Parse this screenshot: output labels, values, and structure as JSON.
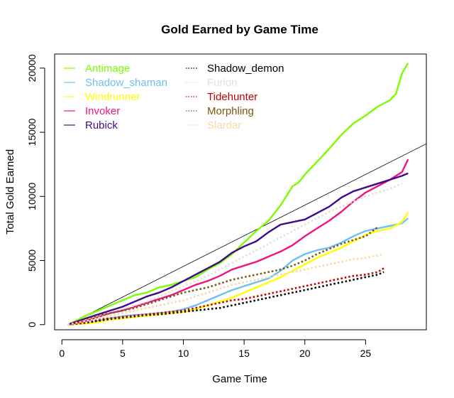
{
  "chart_data": {
    "type": "line",
    "title": "Gold Earned by Game Time",
    "xlabel": "Game Time",
    "ylabel": "Total Gold Earned",
    "xlim": [
      -0.6,
      30.0
    ],
    "ylim": [
      -400,
      21100
    ],
    "xticks": [
      0,
      5,
      10,
      15,
      20,
      25
    ],
    "xtick_labels": [
      "0",
      "5",
      "10",
      "15",
      "20",
      "25"
    ],
    "yticks": [
      0,
      5000,
      10000,
      15000,
      20000
    ],
    "ytick_labels": [
      "0",
      "5000",
      "10000",
      "15000",
      "20000"
    ],
    "legend_position": "top-left",
    "reference_line": {
      "name": "reference",
      "color": "#000000",
      "from": [
        0.5,
        0
      ],
      "to": [
        30.0,
        14100
      ]
    },
    "series": [
      {
        "name": "Antimage",
        "color": "#7CFC00",
        "dash": "solid",
        "x": [
          0.5,
          2,
          3,
          4,
          5,
          6,
          7,
          8,
          9,
          10,
          11,
          12,
          13,
          14,
          15,
          16,
          17,
          18,
          19,
          19.5,
          20,
          21,
          22,
          23,
          24,
          25,
          26,
          27,
          27.5,
          28,
          28.5
        ],
        "y": [
          0,
          700,
          1100,
          1500,
          1900,
          2300,
          2500,
          2900,
          3100,
          3400,
          3700,
          4300,
          4800,
          5500,
          6400,
          7300,
          8100,
          9300,
          10800,
          11100,
          11700,
          12700,
          13700,
          14800,
          15700,
          16300,
          17000,
          17500,
          18000,
          19600,
          20400
        ]
      },
      {
        "name": "Shadow_shaman",
        "color": "#6CC0F0",
        "dash": "solid",
        "x": [
          0.5,
          2,
          3,
          4,
          5,
          6,
          7,
          8,
          9,
          10,
          11,
          12,
          13,
          14,
          15,
          16,
          17,
          18,
          19,
          20,
          21,
          22,
          23,
          24,
          25,
          26,
          27,
          28,
          28.5
        ],
        "y": [
          0,
          100,
          300,
          500,
          650,
          750,
          800,
          900,
          1000,
          1200,
          1500,
          1900,
          2300,
          2700,
          3000,
          3300,
          3600,
          4200,
          5000,
          5500,
          5800,
          6000,
          6400,
          6900,
          7300,
          7500,
          7700,
          7900,
          8300
        ]
      },
      {
        "name": "Windrunner",
        "color": "#FFFF00",
        "dash": "solid",
        "x": [
          0.5,
          2,
          3,
          4,
          5,
          6,
          7,
          8,
          9,
          10,
          11,
          12,
          13,
          14,
          15,
          16,
          17,
          18,
          19,
          20,
          21,
          22,
          23,
          24,
          25,
          26,
          27,
          28,
          28.5
        ],
        "y": [
          0,
          100,
          200,
          400,
          500,
          600,
          700,
          800,
          900,
          1000,
          1200,
          1500,
          1800,
          2100,
          2500,
          2900,
          3300,
          3700,
          4200,
          4700,
          5200,
          5600,
          6000,
          6500,
          7000,
          7300,
          7500,
          8000,
          8800
        ]
      },
      {
        "name": "Invoker",
        "color": "#F0147F",
        "dash": "solid",
        "x": [
          0.5,
          2,
          3,
          4,
          5,
          6,
          7,
          8,
          9,
          10,
          11,
          12,
          13,
          14,
          15,
          16,
          17,
          18,
          19,
          20,
          21,
          22,
          23,
          24,
          25,
          26,
          27,
          28,
          28.5
        ],
        "y": [
          0,
          300,
          600,
          900,
          1100,
          1400,
          1700,
          2000,
          2300,
          2700,
          3100,
          3400,
          3800,
          4300,
          4600,
          4900,
          5300,
          5700,
          6200,
          6900,
          7500,
          8100,
          8800,
          9600,
          10300,
          10800,
          11300,
          11900,
          12900
        ]
      },
      {
        "name": "Rubick",
        "color": "#3D0A8C",
        "dash": "solid",
        "x": [
          0.5,
          2,
          3,
          4,
          5,
          6,
          7,
          8,
          9,
          10,
          11,
          12,
          13,
          14,
          15,
          16,
          17,
          18,
          19,
          20,
          21,
          22,
          23,
          24,
          25,
          26,
          27,
          28,
          28.5
        ],
        "y": [
          0,
          500,
          800,
          1100,
          1400,
          1800,
          2200,
          2500,
          2900,
          3400,
          3900,
          4400,
          4900,
          5600,
          6100,
          6500,
          7200,
          7800,
          8000,
          8200,
          8700,
          9200,
          9900,
          10400,
          10700,
          11000,
          11300,
          11600,
          11800
        ]
      },
      {
        "name": "Shadow_demon",
        "color": "#000000",
        "dash": "dot",
        "x": [
          0.5,
          2,
          3,
          4,
          5,
          6,
          7,
          8,
          9,
          10,
          11,
          12,
          13,
          14,
          15,
          16,
          17,
          18,
          19,
          20,
          21,
          22,
          23,
          24,
          25,
          26,
          26.5
        ],
        "y": [
          0,
          150,
          300,
          450,
          550,
          650,
          750,
          800,
          900,
          1000,
          1100,
          1200,
          1300,
          1500,
          1700,
          1900,
          2100,
          2300,
          2500,
          2700,
          2900,
          3100,
          3300,
          3500,
          3700,
          3900,
          4100
        ]
      },
      {
        "name": "Furion",
        "color": "#E0E0E0",
        "dash": "dot",
        "x": [
          0.5,
          2,
          3,
          4,
          5,
          6,
          7,
          8,
          9,
          10,
          11,
          12,
          13,
          14,
          15,
          16,
          17,
          18,
          19,
          20,
          21,
          22,
          23,
          24,
          25,
          26,
          27,
          28
        ],
        "y": [
          0,
          300,
          600,
          900,
          1200,
          1500,
          1800,
          2200,
          2600,
          3000,
          3400,
          3800,
          4300,
          4800,
          5300,
          5800,
          6300,
          6800,
          7300,
          7800,
          8300,
          8800,
          9200,
          9600,
          10000,
          10300,
          10600,
          11000
        ]
      },
      {
        "name": "Tidehunter",
        "color": "#C00000",
        "dash": "dot",
        "x": [
          0.5,
          2,
          3,
          4,
          5,
          6,
          7,
          8,
          9,
          10,
          11,
          12,
          13,
          14,
          15,
          16,
          17,
          18,
          19,
          20,
          21,
          22,
          23,
          24,
          25,
          26,
          26.5
        ],
        "y": [
          0,
          200,
          400,
          500,
          600,
          700,
          800,
          900,
          1000,
          1100,
          1300,
          1500,
          1700,
          1900,
          2000,
          2200,
          2400,
          2600,
          2800,
          3000,
          3200,
          3400,
          3600,
          3800,
          3900,
          4100,
          4400
        ]
      },
      {
        "name": "Morphling",
        "color": "#7A5510",
        "dash": "dot",
        "x": [
          0.5,
          2,
          3,
          4,
          5,
          6,
          7,
          8,
          9,
          10,
          11,
          12,
          13,
          14,
          15,
          16,
          17,
          18,
          19,
          20,
          21,
          22,
          23,
          24,
          25,
          26
        ],
        "y": [
          0,
          400,
          700,
          900,
          1100,
          1300,
          1600,
          1900,
          2200,
          2500,
          2700,
          2900,
          3200,
          3500,
          3700,
          3900,
          4100,
          4300,
          4600,
          5000,
          5500,
          5900,
          6300,
          6600,
          6900,
          7600
        ]
      },
      {
        "name": "Slardar",
        "color": "#F8D8A8",
        "dash": "dot",
        "x": [
          0.5,
          2,
          3,
          4,
          5,
          6,
          7,
          8,
          9,
          10,
          11,
          12,
          13,
          14,
          15,
          16,
          17,
          18,
          19,
          20,
          21,
          22,
          23,
          24,
          25,
          26,
          26.5
        ],
        "y": [
          0,
          300,
          500,
          700,
          900,
          1100,
          1300,
          1500,
          1700,
          1900,
          2200,
          2500,
          2800,
          3100,
          3300,
          3500,
          3700,
          3900,
          4100,
          4300,
          4500,
          4700,
          4900,
          5100,
          5200,
          5400,
          5500
        ]
      }
    ]
  }
}
